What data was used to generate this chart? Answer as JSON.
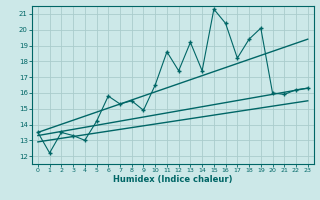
{
  "xlabel": "Humidex (Indice chaleur)",
  "ylabel": "",
  "bg_color": "#cce8e8",
  "grid_color": "#aacccc",
  "line_color": "#006666",
  "xlim": [
    -0.5,
    23.5
  ],
  "ylim": [
    11.5,
    21.5
  ],
  "xticks": [
    0,
    1,
    2,
    3,
    4,
    5,
    6,
    7,
    8,
    9,
    10,
    11,
    12,
    13,
    14,
    15,
    16,
    17,
    18,
    19,
    20,
    21,
    22,
    23
  ],
  "yticks": [
    12,
    13,
    14,
    15,
    16,
    17,
    18,
    19,
    20,
    21
  ],
  "series1_x": [
    0,
    1,
    2,
    3,
    4,
    5,
    6,
    7,
    8,
    9,
    10,
    11,
    12,
    13,
    14,
    15,
    16,
    17,
    18,
    19,
    20,
    21,
    22,
    23
  ],
  "series1_y": [
    13.5,
    12.2,
    13.5,
    13.3,
    13.0,
    14.2,
    15.8,
    15.3,
    15.5,
    14.9,
    16.5,
    18.6,
    17.4,
    19.2,
    17.4,
    21.3,
    20.4,
    18.2,
    19.4,
    20.1,
    16.0,
    15.9,
    16.2,
    16.3
  ],
  "trend1_x": [
    0,
    23
  ],
  "trend1_y": [
    13.3,
    16.3
  ],
  "trend2_x": [
    0,
    23
  ],
  "trend2_y": [
    13.5,
    19.4
  ],
  "trend3_x": [
    0,
    23
  ],
  "trend3_y": [
    12.9,
    15.5
  ]
}
